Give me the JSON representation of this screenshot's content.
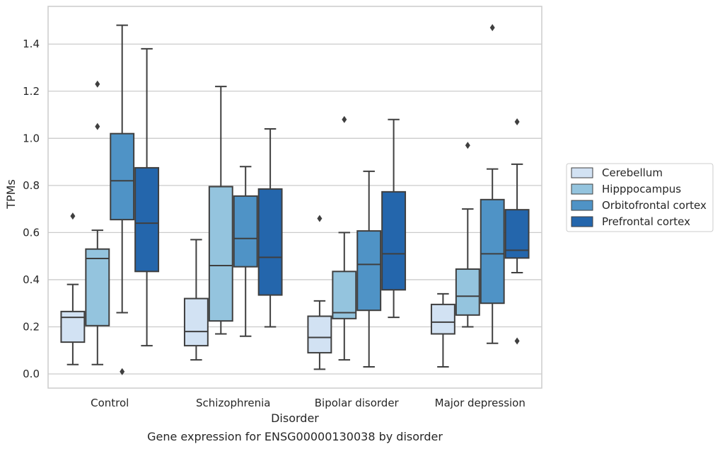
{
  "caption": "Gene expression for ENSG00000130038 by disorder",
  "chart_data": {
    "type": "box",
    "xlabel": "Disorder",
    "ylabel": "TPMs",
    "ylim": [
      -0.06,
      1.56
    ],
    "yticks": [
      0.0,
      0.2,
      0.4,
      0.6,
      0.8,
      1.0,
      1.2,
      1.4
    ],
    "ytick_labels": [
      "0.0",
      "0.2",
      "0.4",
      "0.6",
      "0.8",
      "1.0",
      "1.2",
      "1.4"
    ],
    "grid": "horizontal",
    "legend_position": "center-right outside",
    "categories": [
      "Control",
      "Schizophrenia",
      "Bipolar disorder",
      "Major depression"
    ],
    "series": [
      {
        "name": "Cerebellum",
        "color": "#d2e2f3",
        "boxes": [
          {
            "whisker_low": 0.04,
            "q1": 0.135,
            "median": 0.24,
            "q3": 0.265,
            "whisker_high": 0.38,
            "outliers": [
              0.67
            ]
          },
          {
            "whisker_low": 0.06,
            "q1": 0.12,
            "median": 0.18,
            "q3": 0.32,
            "whisker_high": 0.57,
            "outliers": []
          },
          {
            "whisker_low": 0.02,
            "q1": 0.09,
            "median": 0.155,
            "q3": 0.245,
            "whisker_high": 0.31,
            "outliers": [
              0.66
            ]
          },
          {
            "whisker_low": 0.03,
            "q1": 0.17,
            "median": 0.22,
            "q3": 0.295,
            "whisker_high": 0.34,
            "outliers": []
          }
        ]
      },
      {
        "name": "Hipppocampus",
        "color": "#94c4de",
        "boxes": [
          {
            "whisker_low": 0.04,
            "q1": 0.205,
            "median": 0.49,
            "q3": 0.53,
            "whisker_high": 0.61,
            "outliers": [
              1.05,
              1.23
            ]
          },
          {
            "whisker_low": 0.17,
            "q1": 0.225,
            "median": 0.46,
            "q3": 0.795,
            "whisker_high": 1.22,
            "outliers": []
          },
          {
            "whisker_low": 0.06,
            "q1": 0.235,
            "median": 0.26,
            "q3": 0.435,
            "whisker_high": 0.6,
            "outliers": [
              1.08
            ]
          },
          {
            "whisker_low": 0.2,
            "q1": 0.25,
            "median": 0.33,
            "q3": 0.445,
            "whisker_high": 0.7,
            "outliers": [
              0.97
            ]
          }
        ]
      },
      {
        "name": "Orbitofrontal cortex",
        "color": "#4f93c6",
        "boxes": [
          {
            "whisker_low": 0.26,
            "q1": 0.655,
            "median": 0.82,
            "q3": 1.02,
            "whisker_high": 1.48,
            "outliers": [
              0.01
            ]
          },
          {
            "whisker_low": 0.16,
            "q1": 0.455,
            "median": 0.575,
            "q3": 0.755,
            "whisker_high": 0.88,
            "outliers": []
          },
          {
            "whisker_low": 0.03,
            "q1": 0.27,
            "median": 0.465,
            "q3": 0.607,
            "whisker_high": 0.86,
            "outliers": []
          },
          {
            "whisker_low": 0.13,
            "q1": 0.3,
            "median": 0.51,
            "q3": 0.74,
            "whisker_high": 0.87,
            "outliers": [
              1.47
            ]
          }
        ]
      },
      {
        "name": "Prefrontal cortex",
        "color": "#2466ac",
        "boxes": [
          {
            "whisker_low": 0.12,
            "q1": 0.435,
            "median": 0.64,
            "q3": 0.875,
            "whisker_high": 1.38,
            "outliers": []
          },
          {
            "whisker_low": 0.2,
            "q1": 0.335,
            "median": 0.495,
            "q3": 0.785,
            "whisker_high": 1.04,
            "outliers": []
          },
          {
            "whisker_low": 0.24,
            "q1": 0.357,
            "median": 0.51,
            "q3": 0.773,
            "whisker_high": 1.08,
            "outliers": []
          },
          {
            "whisker_low": 0.43,
            "q1": 0.492,
            "median": 0.525,
            "q3": 0.697,
            "whisker_high": 0.89,
            "outliers": [
              0.14,
              1.07
            ]
          }
        ]
      }
    ]
  }
}
